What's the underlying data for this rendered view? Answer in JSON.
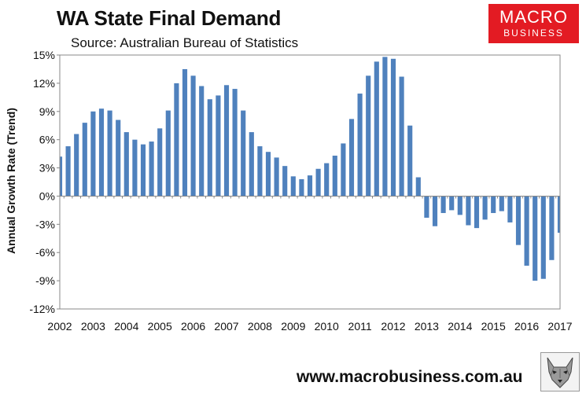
{
  "header": {
    "title": "WA State Final Demand",
    "subtitle": "Source: Australian Bureau of Statistics"
  },
  "logo": {
    "line1": "MACRO",
    "line2": "BUSINESS",
    "background": "#e31b23"
  },
  "footer": {
    "website": "www.macrobusiness.com.au",
    "mascot_icon": "wolf-mascot-icon"
  },
  "chart_data": {
    "type": "bar",
    "ylabel": "Annual Growth Rate (Trend)",
    "ylim": [
      -12,
      15
    ],
    "yticks": [
      -12,
      -9,
      -6,
      -3,
      0,
      3,
      6,
      9,
      12,
      15
    ],
    "ytick_labels": [
      "-12%",
      "-9%",
      "-6%",
      "-3%",
      "0%",
      "3%",
      "6%",
      "9%",
      "12%",
      "15%"
    ],
    "xlim": [
      2002,
      2017
    ],
    "xticks": [
      2002,
      2003,
      2004,
      2005,
      2006,
      2007,
      2008,
      2009,
      2010,
      2011,
      2012,
      2013,
      2014,
      2015,
      2016,
      2017
    ],
    "xtick_labels": [
      "2002",
      "2003",
      "2004",
      "2005",
      "2006",
      "2007",
      "2008",
      "2009",
      "2010",
      "2011",
      "2012",
      "2013",
      "2014",
      "2015",
      "2016",
      "2017"
    ],
    "bar_color": "#4f81bd",
    "grid": false,
    "x": [
      2002.0,
      2002.25,
      2002.5,
      2002.75,
      2003.0,
      2003.25,
      2003.5,
      2003.75,
      2004.0,
      2004.25,
      2004.5,
      2004.75,
      2005.0,
      2005.25,
      2005.5,
      2005.75,
      2006.0,
      2006.25,
      2006.5,
      2006.75,
      2007.0,
      2007.25,
      2007.5,
      2007.75,
      2008.0,
      2008.25,
      2008.5,
      2008.75,
      2009.0,
      2009.25,
      2009.5,
      2009.75,
      2010.0,
      2010.25,
      2010.5,
      2010.75,
      2011.0,
      2011.25,
      2011.5,
      2011.75,
      2012.0,
      2012.25,
      2012.5,
      2012.75,
      2013.0,
      2013.25,
      2013.5,
      2013.75,
      2014.0,
      2014.25,
      2014.5,
      2014.75,
      2015.0,
      2015.25,
      2015.5,
      2015.75,
      2016.0,
      2016.25,
      2016.5,
      2016.75,
      2017.0
    ],
    "values": [
      4.2,
      5.3,
      6.6,
      7.8,
      9.0,
      9.3,
      9.1,
      8.1,
      6.8,
      6.0,
      5.5,
      5.8,
      7.2,
      9.1,
      12.0,
      13.5,
      12.8,
      11.7,
      10.3,
      10.7,
      11.8,
      11.4,
      9.1,
      6.8,
      5.3,
      4.7,
      4.1,
      3.2,
      2.1,
      1.8,
      2.2,
      2.9,
      3.5,
      4.3,
      5.6,
      8.2,
      10.9,
      12.8,
      14.3,
      14.8,
      14.6,
      12.7,
      7.5,
      2.0,
      -2.3,
      -3.2,
      -1.8,
      -1.5,
      -2.0,
      -3.1,
      -3.4,
      -2.5,
      -1.8,
      -1.6,
      -2.8,
      -5.2,
      -7.4,
      -9.0,
      -8.8,
      -6.8,
      -3.9
    ]
  }
}
